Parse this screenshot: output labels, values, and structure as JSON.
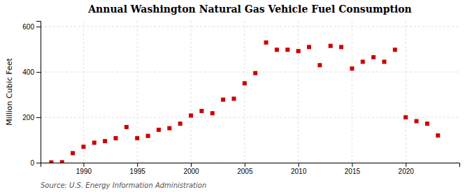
{
  "chart_data": {
    "type": "scatter",
    "title": "Annual Washington Natural Gas Vehicle Fuel Consumption",
    "y_label": "Million Cubic Feet",
    "annotations": [
      "Source: U.S. Energy Information Administration"
    ],
    "x": [
      1987,
      1988,
      1989,
      1990,
      1991,
      1992,
      1993,
      1994,
      1995,
      1996,
      1997,
      1998,
      1999,
      2000,
      2001,
      2002,
      2003,
      2004,
      2005,
      2006,
      2007,
      2008,
      2009,
      2010,
      2011,
      2012,
      2013,
      2014,
      2015,
      2016,
      2017,
      2018,
      2019,
      2020,
      2021,
      2022,
      2023
    ],
    "values": [
      1,
      2,
      42,
      70,
      88,
      95,
      108,
      157,
      108,
      118,
      145,
      152,
      172,
      208,
      228,
      218,
      278,
      282,
      350,
      395,
      530,
      498,
      498,
      492,
      510,
      430,
      515,
      510,
      415,
      445,
      465,
      445,
      498,
      200,
      183,
      172,
      120
    ],
    "color": "#cc0000",
    "marker": "square",
    "xlim": [
      1986,
      2025
    ],
    "ylim": [
      0,
      625
    ],
    "xticks": [
      1990,
      1995,
      2000,
      2005,
      2010,
      2015,
      2020
    ],
    "yticks": [
      0,
      200,
      400,
      600
    ],
    "grid": true
  }
}
